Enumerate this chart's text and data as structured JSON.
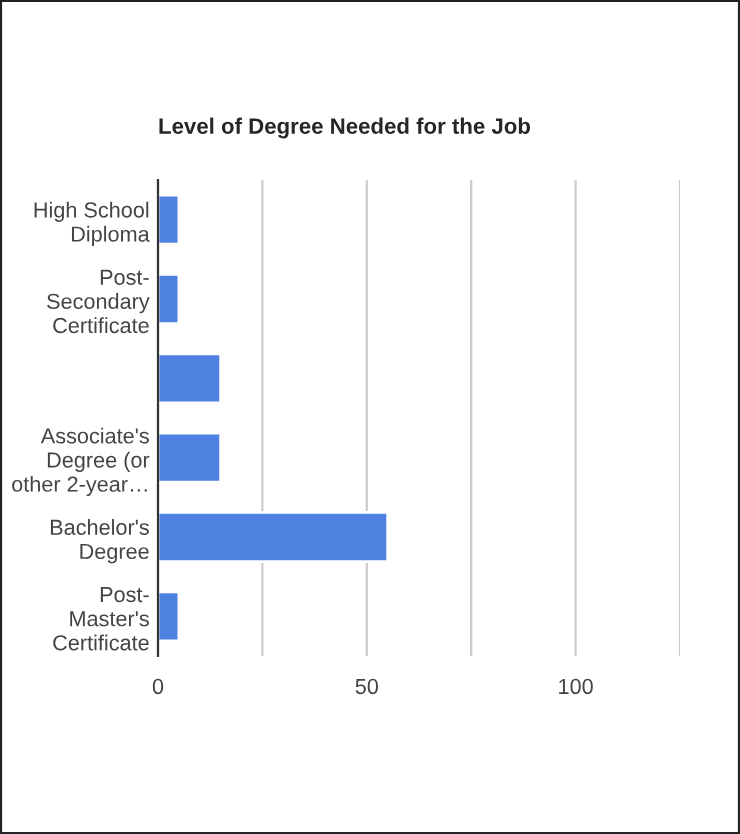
{
  "chart_data": {
    "type": "bar",
    "orientation": "horizontal",
    "title": "Level of Degree Needed for the Job",
    "categories": [
      "High School\nDiploma",
      "Post-\nSecondary\nCertificate",
      null,
      "Associate's\nDegree (or\nother 2-year…",
      "Bachelor's\nDegree",
      "Post-\nMaster's\nCertificate"
    ],
    "values": [
      5,
      5,
      15,
      15,
      55,
      5
    ],
    "color": "#4f81e0",
    "xlim": [
      0,
      125
    ],
    "xticks": [
      0,
      {
        "value": 25,
        "label": null
      },
      50,
      {
        "value": 75,
        "label": null
      },
      100,
      {
        "value": 125,
        "label": null
      }
    ],
    "grid": "x"
  }
}
